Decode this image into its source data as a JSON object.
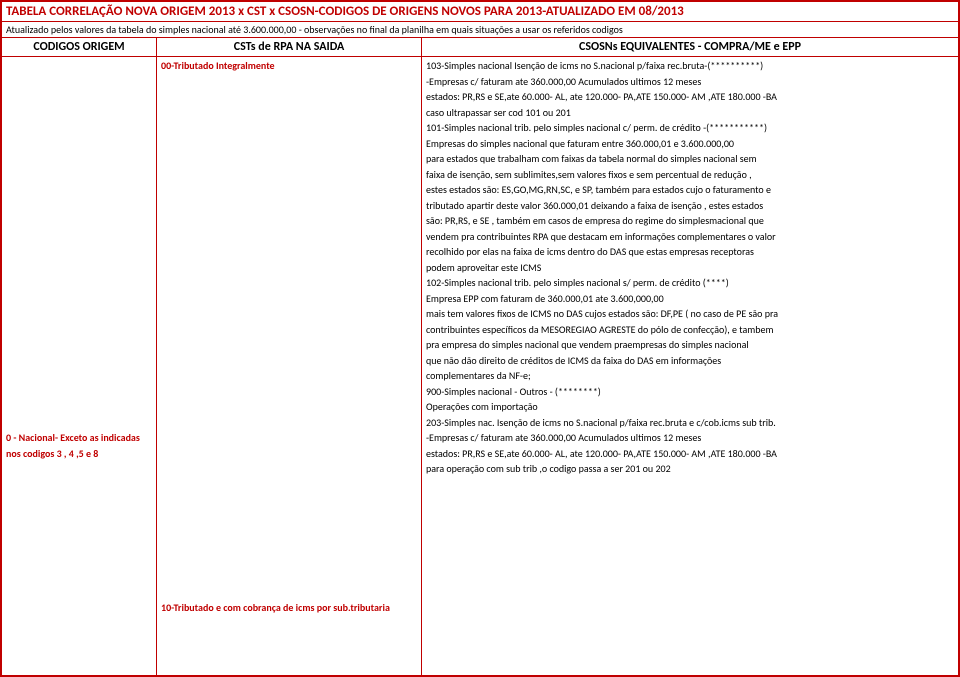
{
  "title": "TABELA CORRELAÇÃO NOVA ORIGEM 2013 x CST x CSOSN-CODIGOS DE ORIGENS NOVOS PARA 2013-ATUALIZADO EM 08/2013",
  "subtitle": "Atualizado pelos valores da tabela do simples nacional até 3.600.000,00 - observações no final da planilha em quais situações a usar os referidos codigos",
  "headers": {
    "left": "CODIGOS ORIGEM",
    "mid": "CSTs de RPA NA SAIDA",
    "right": "CSOSNs EQUIVALENTES - COMPRA/ME e EPP"
  },
  "left": {
    "line1": "0 - Nacional- Exceto as indicadas",
    "line2": "nos codigos 3 , 4 ,5 e 8"
  },
  "mid": {
    "line1": "00-Tributado Integralmente",
    "line2": "10-Tributado e com cobrança de icms por sub.tributaria"
  },
  "right": {
    "l1": "103-Simples nacional Isenção de icms no S.nacional p/faixa rec.bruta-(**********)",
    "l2": "-Empresas c/ faturam ate 360.000,00  Acumulados ultimos 12 meses",
    "l3": "estados: PR,RS e SE,ate 60.000- AL, ate 120.000- PA,ATE 150.000- AM ,ATE 180.000 -BA",
    "l4": "caso ultrapassar  ser cod 101 ou 201",
    "l5": "101-Simples nacional trib. pelo simples nacional c/ perm. de crédito -(***********)",
    "l6": "Empresas do simples nacional que faturam entre  360.000,01 e 3.600.000,00",
    "l7": " para estados que trabalham com faixas da tabela normal do simples nacional sem",
    "l8": "faixa de isenção, sem sublimites,sem valores fixos e sem percentual de redução ,",
    "l9": " estes estados são: ES,GO,MG,RN,SC, e SP, também para estados cujo o faturamento e",
    "l10": " tributado apartir deste valor 360.000,01 deixando a faixa de isenção , estes estados",
    "l11": " são: PR,RS, e SE , também em casos de empresa do regime do simplesmacional que",
    "l12": "vendem pra contribuintes RPA que destacam em informações complementares o valor",
    "l13": "recolhido por elas na faixa de icms dentro do DAS que estas empresas receptoras",
    "l14": "podem aproveitar este ICMS",
    "l15": "102-Simples nacional trib. pelo simples nacional s/ perm. de crédito (****)",
    "l16": "Empresa EPP com  faturam de 360.000,01 ate 3.600,000,00",
    "l17": " mais tem valores fixos de ICMS no DAS cujos estados são: DF,PE ( no caso de PE são pra",
    "l18": "contribuintes específicos da MESOREGIAO AGRESTE do pólo de confecção), e tambem",
    "l19": "pra empresa do simples nacional que vendem praempresas do simples nacional",
    "l20": "que não dão direito de créditos de ICMS da faixa do DAS em informações",
    "l21": "complementares da NF-e;",
    "l22": "900-Simples nacional - Outros - (********)",
    "l23": "Operações com importação",
    "l24": "203-Simples nac. Isenção de icms no S.nacional p/faixa rec.bruta e c/cob.icms sub trib.",
    "l25": "-Empresas c/ faturam ate 360.000,00  Acumulados ultimos 12 meses",
    "l26": "estados: PR,RS e SE,ate 60.000- AL, ate 120.000- PA,ATE 150.000- AM ,ATE 180.000 -BA",
    "l27": " para operação com sub trib ,o codigo passa a ser 201 ou 202"
  }
}
